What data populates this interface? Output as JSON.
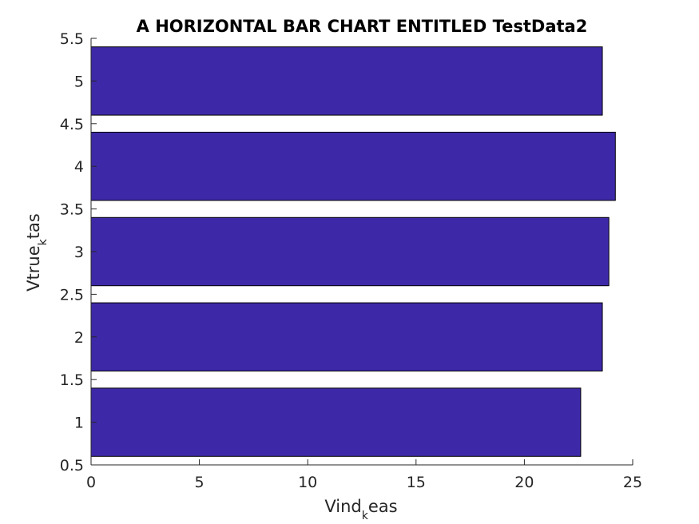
{
  "chart_data": {
    "type": "bar",
    "orientation": "horizontal",
    "title": "A HORIZONTAL BAR CHART ENTITLED TestData2",
    "xlabel": {
      "main": "Vind",
      "subscript": "k",
      "rest": "eas"
    },
    "ylabel": {
      "main": "Vtrue",
      "subscript": "k",
      "rest": "tas"
    },
    "categories": [
      1,
      2,
      3,
      4,
      5
    ],
    "values": [
      22.6,
      23.6,
      23.9,
      24.2,
      23.6
    ],
    "xlim": [
      0,
      25
    ],
    "ylim": [
      0.5,
      5.5
    ],
    "xticks": [
      "0",
      "5",
      "10",
      "15",
      "20",
      "25"
    ],
    "yticks": [
      "0.5",
      "1",
      "1.5",
      "2",
      "2.5",
      "3",
      "3.5",
      "4",
      "4.5",
      "5",
      "5.5"
    ],
    "bar_color": "#3D29A8",
    "grid": false,
    "legend": "none"
  }
}
